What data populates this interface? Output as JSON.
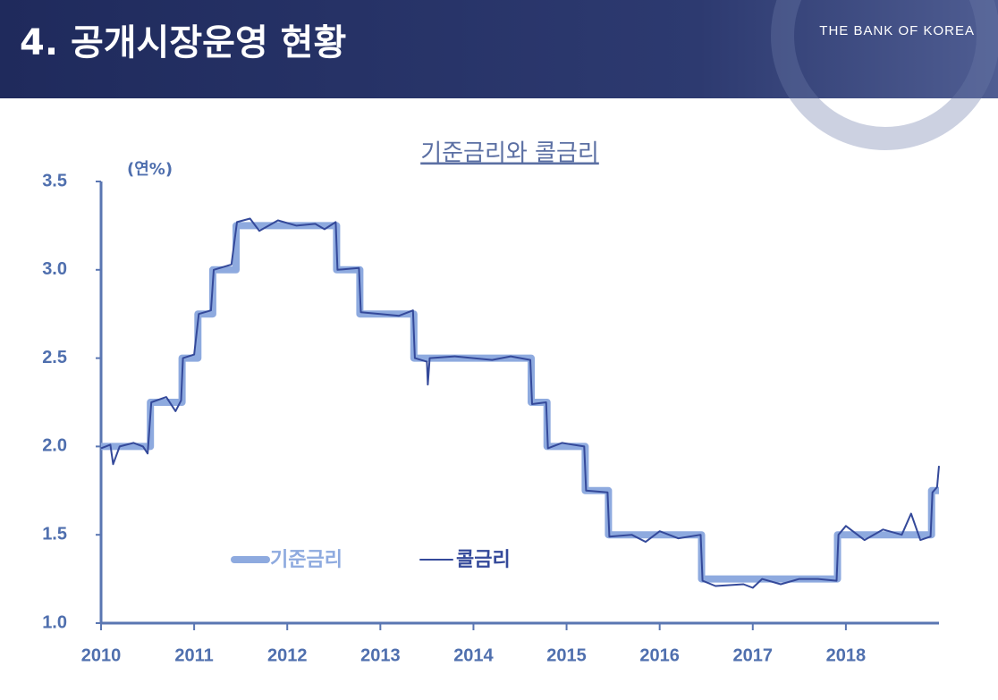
{
  "header": {
    "title": "4. 공개시장운영 현황",
    "logo": "THE BANK OF KOREA"
  },
  "chart_data": {
    "type": "line",
    "title": "기준금리와 콜금리",
    "ylabel": "(연%)",
    "xlim": [
      2010,
      2019
    ],
    "xticks": [
      2010,
      2011,
      2012,
      2013,
      2014,
      2015,
      2016,
      2017,
      2018
    ],
    "ylim": [
      1,
      3.5
    ],
    "yticks": [
      {
        "value": 1,
        "label": "1.0"
      },
      1.5,
      {
        "value": 2,
        "label": "2.0"
      },
      2.5,
      {
        "value": 3,
        "label": "3.0"
      },
      3.5
    ],
    "series": [
      {
        "name": "기준금리",
        "color": "#8eaadf",
        "width": 8,
        "x": [
          2010,
          2010.53,
          2010.53,
          2010.87,
          2010.87,
          2011.04,
          2011.04,
          2011.2,
          2011.2,
          2011.45,
          2011.45,
          2012.53,
          2012.53,
          2012.78,
          2012.78,
          2013.36,
          2013.36,
          2014.62,
          2014.62,
          2014.79,
          2014.79,
          2015.2,
          2015.2,
          2015.45,
          2015.45,
          2016.45,
          2016.45,
          2017.91,
          2017.91,
          2018.92,
          2018.92,
          2019
        ],
        "values": [
          2,
          2,
          2.25,
          2.25,
          2.5,
          2.5,
          2.75,
          2.75,
          3,
          3,
          3.25,
          3.25,
          3,
          3,
          2.75,
          2.75,
          2.5,
          2.5,
          2.25,
          2.25,
          2,
          2,
          1.75,
          1.75,
          1.5,
          1.5,
          1.25,
          1.25,
          1.5,
          1.5,
          1.75,
          1.75
        ]
      },
      {
        "name": "콜금리",
        "color": "#34499a",
        "width": 2,
        "x": [
          2010,
          2010.1,
          2010.13,
          2010.2,
          2010.35,
          2010.45,
          2010.5,
          2010.54,
          2010.7,
          2010.8,
          2010.86,
          2010.88,
          2011,
          2011.05,
          2011.18,
          2011.21,
          2011.4,
          2011.46,
          2011.6,
          2011.7,
          2011.9,
          2012.1,
          2012.3,
          2012.4,
          2012.52,
          2012.54,
          2012.77,
          2012.79,
          2013,
          2013.2,
          2013.35,
          2013.37,
          2013.5,
          2013.51,
          2013.53,
          2013.8,
          2014,
          2014.2,
          2014.4,
          2014.61,
          2014.63,
          2014.78,
          2014.8,
          2014.95,
          2015.19,
          2015.21,
          2015.44,
          2015.46,
          2015.7,
          2015.85,
          2016,
          2016.2,
          2016.44,
          2016.46,
          2016.6,
          2016.9,
          2017,
          2017.1,
          2017.3,
          2017.5,
          2017.7,
          2017.9,
          2017.92,
          2018,
          2018.2,
          2018.4,
          2018.6,
          2018.7,
          2018.8,
          2018.91,
          2018.93,
          2018.98,
          2019
        ],
        "values": [
          1.99,
          2.01,
          1.9,
          2,
          2.02,
          2,
          1.96,
          2.25,
          2.28,
          2.2,
          2.26,
          2.5,
          2.52,
          2.75,
          2.77,
          3,
          3.03,
          3.27,
          3.29,
          3.22,
          3.28,
          3.25,
          3.26,
          3.23,
          3.27,
          3,
          3.01,
          2.76,
          2.75,
          2.74,
          2.77,
          2.5,
          2.48,
          2.35,
          2.5,
          2.51,
          2.5,
          2.49,
          2.51,
          2.49,
          2.24,
          2.25,
          1.99,
          2.02,
          2,
          1.75,
          1.74,
          1.49,
          1.5,
          1.46,
          1.52,
          1.48,
          1.5,
          1.24,
          1.21,
          1.22,
          1.2,
          1.25,
          1.22,
          1.25,
          1.25,
          1.24,
          1.5,
          1.55,
          1.47,
          1.53,
          1.5,
          1.62,
          1.47,
          1.49,
          1.74,
          1.77,
          1.89
        ]
      }
    ]
  }
}
